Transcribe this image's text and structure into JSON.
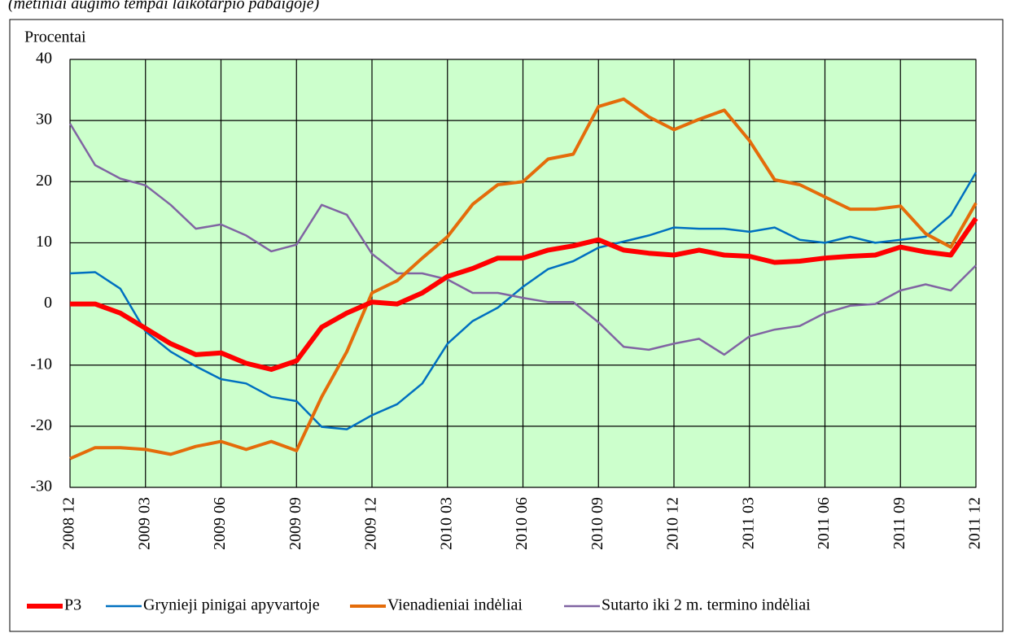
{
  "chart_data": {
    "type": "line",
    "subtitle": "(metiniai augimo tempai laikotarpio pabaigoje)",
    "ylabel": "Procentai",
    "categories": [
      "2008 12",
      null,
      null,
      "2009 03",
      null,
      null,
      "2009 06",
      null,
      null,
      "2009 09",
      null,
      null,
      "2009 12",
      null,
      null,
      "2010 03",
      null,
      null,
      "2010 06",
      null,
      null,
      "2010 09",
      null,
      null,
      "2010 12",
      null,
      null,
      "2011 03",
      null,
      null,
      "2011 06",
      null,
      null,
      "2011 09",
      null,
      null,
      "2011 12"
    ],
    "series": [
      {
        "name": "P3",
        "color": "#ff0000",
        "values": [
          0,
          0,
          -1.5,
          -4,
          -6.5,
          -8.3,
          -8,
          -9.7,
          -10.7,
          -9.3,
          -3.8,
          -1.5,
          0.3,
          0,
          1.8,
          4.5,
          5.8,
          7.5,
          7.5,
          8.8,
          9.5,
          10.5,
          8.8,
          8.3,
          8,
          8.8,
          8,
          7.8,
          6.8,
          7,
          7.5,
          7.8,
          8,
          9.3,
          8.5,
          8,
          14
        ]
      },
      {
        "name": "Grynieji pinigai apyvartoje",
        "color": "#0070c0",
        "values": [
          5,
          5.2,
          2.5,
          -4.5,
          -7.8,
          -10.2,
          -12.3,
          -13,
          -15.2,
          -15.9,
          -20.1,
          -20.5,
          -18.2,
          -16.4,
          -13,
          -6.5,
          -2.8,
          -0.6,
          2.8,
          5.7,
          7,
          9.2,
          10.2,
          11.2,
          12.5,
          12.3,
          12.3,
          11.8,
          12.5,
          10.5,
          10,
          11,
          10,
          10.5,
          11,
          14.5,
          21.5
        ]
      },
      {
        "name": "Vienadieniai indėliai",
        "color": "#e46c0a",
        "values": [
          -25.3,
          -23.5,
          -23.5,
          -23.8,
          -24.6,
          -23.3,
          -22.5,
          -23.8,
          -22.5,
          -24,
          -15.2,
          -7.8,
          1.8,
          3.8,
          7.5,
          11,
          16.3,
          19.5,
          20,
          23.7,
          24.5,
          32.3,
          33.5,
          30.6,
          28.5,
          30.2,
          31.7,
          26.7,
          20.3,
          19.5,
          17.5,
          15.5,
          15.5,
          16,
          11.5,
          9.3,
          16.5
        ]
      },
      {
        "name": "Sutarto iki 2 m. termino indėliai",
        "color": "#8064a2",
        "values": [
          29.5,
          22.7,
          20.5,
          19.4,
          16.2,
          12.3,
          13,
          11.2,
          8.6,
          9.7,
          16.2,
          14.6,
          8.2,
          5,
          5,
          4,
          1.8,
          1.8,
          1,
          0.3,
          0.3,
          -3,
          -7,
          -7.5,
          -6.5,
          -5.7,
          -8.3,
          -5.3,
          -4.2,
          -3.6,
          -1.5,
          -0.3,
          0,
          2.2,
          3.2,
          2.2,
          6.3
        ]
      }
    ],
    "ylim": [
      -30,
      40
    ],
    "yticks": [
      -30,
      -20,
      -10,
      0,
      10,
      20,
      30,
      40
    ],
    "grid": true,
    "background": "#ccffcc",
    "legend": "bottom"
  }
}
